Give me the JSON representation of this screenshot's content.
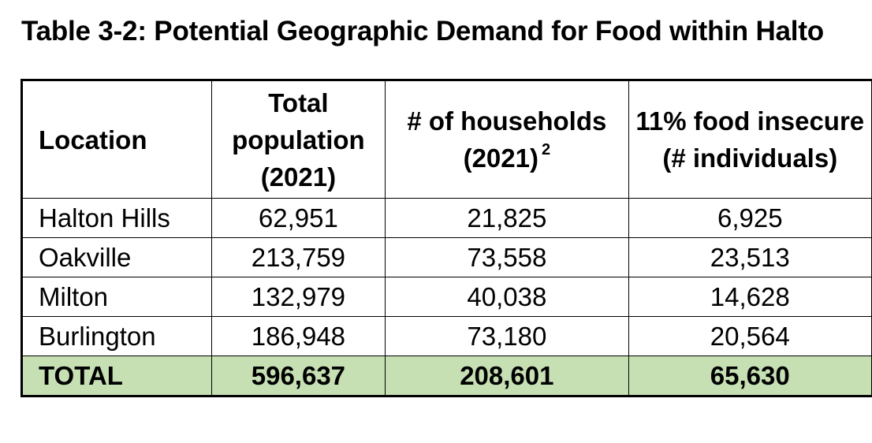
{
  "title": "Table 3-2: Potential Geographic Demand for Food within Halto",
  "table": {
    "headers": {
      "location": "Location",
      "population": "Total population (2021)",
      "households": "# of households (2021)",
      "households_sup": "2",
      "insecure": "11% food insecure (# individuals)"
    },
    "rows": [
      {
        "location": "Halton Hills",
        "population": "62,951",
        "households": "21,825",
        "insecure": "6,925"
      },
      {
        "location": "Oakville",
        "population": "213,759",
        "households": "73,558",
        "insecure": "23,513"
      },
      {
        "location": "Milton",
        "population": "132,979",
        "households": "40,038",
        "insecure": "14,628"
      },
      {
        "location": "Burlington",
        "population": "186,948",
        "households": "73,180",
        "insecure": "20,564"
      }
    ],
    "total": {
      "location": "TOTAL",
      "population": "596,637",
      "households": "208,601",
      "insecure": "65,630"
    }
  },
  "colors": {
    "total_row_background": "#c6e0b4",
    "border": "#000000"
  }
}
